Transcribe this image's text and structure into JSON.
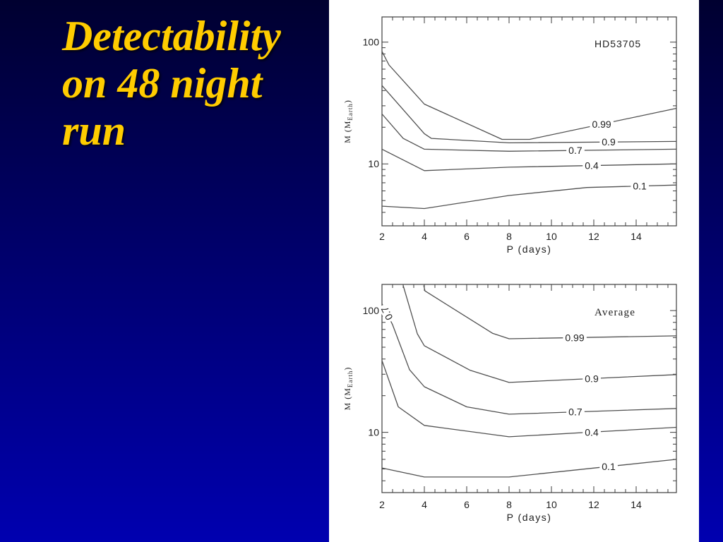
{
  "slide": {
    "title_lines": [
      "Detectability",
      "on 48 night",
      "run"
    ]
  },
  "colors": {
    "background_top": "#000030",
    "background_bottom": "#0000b0",
    "title": "#ffcc00",
    "figure_panel": "#ffffff",
    "contour_line": "#505050",
    "axis": "#3c3c3c",
    "text": "#1e1e1e"
  },
  "chart_data": [
    {
      "type": "line",
      "annotation": "HD53705",
      "xlabel": "P (days)",
      "ylabel": "M (M",
      "ylabel_subscript": "Earth",
      "ylabel_suffix": ")",
      "xlim": [
        2,
        15.9
      ],
      "ylim": [
        3.1,
        161
      ],
      "y_scale": "log",
      "grid": false,
      "x_ticks": [
        2,
        4,
        6,
        8,
        10,
        12,
        14
      ],
      "y_ticks": [
        10,
        100
      ],
      "series": [
        {
          "name": "0.99",
          "x": [
            2,
            2.33,
            4,
            7.67,
            8.97,
            15.9
          ],
          "y": [
            84,
            65,
            31,
            15.9,
            15.9,
            28.6
          ]
        },
        {
          "name": "0.9",
          "x": [
            2,
            4,
            4.33,
            8,
            15.9
          ],
          "y": [
            44,
            17.7,
            16.2,
            14.9,
            15.3
          ]
        },
        {
          "name": "0.7",
          "x": [
            2,
            3,
            4,
            8,
            15.9
          ],
          "y": [
            25.7,
            16.2,
            13.2,
            12.7,
            13.2
          ]
        },
        {
          "name": "0.4",
          "x": [
            2,
            4,
            8,
            15.9
          ],
          "y": [
            13.2,
            8.8,
            9.4,
            10
          ]
        },
        {
          "name": "0.1",
          "x": [
            2,
            4,
            8,
            11.67,
            15.9
          ],
          "y": [
            4.5,
            4.3,
            5.5,
            6.4,
            6.7
          ]
        }
      ]
    },
    {
      "type": "line",
      "annotation": "Average",
      "xlabel": "P (days)",
      "ylabel": "M (M",
      "ylabel_subscript": "Earth",
      "ylabel_suffix": ")",
      "xlim": [
        2,
        15.9
      ],
      "ylim": [
        3.2,
        164
      ],
      "y_scale": "log",
      "grid": false,
      "x_ticks": [
        2,
        4,
        6,
        8,
        10,
        12,
        14
      ],
      "y_ticks": [
        10,
        100
      ],
      "series": [
        {
          "name": "0.99",
          "x": [
            3.97,
            4.03,
            7.23,
            8,
            15.9
          ],
          "y": [
            161,
            145,
            65,
            58.7,
            62
          ]
        },
        {
          "name": "0.9",
          "x": [
            3,
            3.67,
            4,
            6.17,
            8,
            15.9
          ],
          "y": [
            161,
            64.4,
            51.4,
            32.3,
            25.7,
            29.8
          ]
        },
        {
          "name": "0.7",
          "x": [
            2,
            2.5,
            3.3,
            4,
            6,
            8,
            15.9
          ],
          "y": [
            114,
            76.5,
            32.7,
            23.7,
            16.2,
            14.1,
            15.7
          ]
        },
        {
          "name": "0.4",
          "x": [
            2,
            2.77,
            4,
            8,
            15.9
          ],
          "y": [
            38.9,
            16.2,
            11.4,
            9.2,
            11
          ]
        },
        {
          "name": "0.1",
          "x": [
            2,
            4,
            8,
            15.9
          ],
          "y": [
            5.1,
            4.3,
            4.3,
            6
          ]
        }
      ]
    }
  ]
}
